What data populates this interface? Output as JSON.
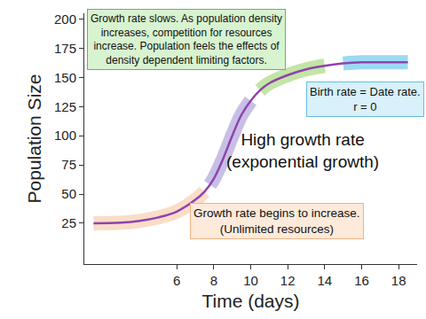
{
  "chart_data": {
    "type": "line",
    "xlabel": "Time (days)",
    "ylabel": "Population Size",
    "xlim": [
      1,
      19
    ],
    "xticks": [
      6,
      8,
      10,
      12,
      14,
      16,
      18
    ],
    "ylim": [
      -10,
      205
    ],
    "yticks": [
      25,
      50,
      75,
      100,
      125,
      150,
      175,
      200
    ],
    "grid": false,
    "series": [
      {
        "color": "#8e44ad",
        "line_style": "solid",
        "x": [
          1.5,
          3,
          4,
          5,
          6,
          7,
          7.5,
          8,
          8.5,
          9,
          9.5,
          10,
          10.5,
          11,
          12,
          13,
          14,
          15,
          16,
          17,
          18,
          18.5
        ],
        "values": [
          25,
          25.5,
          27,
          30,
          35,
          45,
          52,
          63,
          80,
          100,
          118,
          130,
          139,
          145,
          152,
          157,
          160,
          162,
          163,
          163,
          163,
          163
        ]
      },
      {
        "color": "#f7c6a3",
        "line_style": "highlight",
        "x": [
          1.5,
          3,
          4,
          5,
          6,
          7,
          7.5
        ],
        "values": [
          25,
          25.5,
          27,
          30,
          35,
          45,
          52
        ]
      },
      {
        "color": "#a394d6",
        "line_style": "highlight",
        "x": [
          7.8,
          8,
          8.5,
          9,
          9.5,
          10
        ],
        "values": [
          58,
          63,
          80,
          100,
          118,
          130
        ]
      },
      {
        "color": "#9bd46a",
        "line_style": "highlight",
        "x": [
          10.5,
          11,
          12,
          13,
          14
        ],
        "values": [
          139,
          145,
          152,
          157,
          160
        ]
      },
      {
        "color": "#5bc0eb",
        "line_style": "highlight",
        "x": [
          15,
          16,
          17,
          18,
          18.5
        ],
        "values": [
          162,
          163,
          163,
          163,
          163
        ]
      }
    ],
    "annotations": [
      {
        "text": [
          "Growth rate slows. As population density",
          "increases, competition for resources",
          "increase. Population feels the effects of",
          "density dependent limiting factors."
        ]
      },
      {
        "text": [
          "Birth rate = Date rate.",
          "r = 0"
        ]
      },
      {
        "text": [
          "High growth rate",
          "(exponential growth)"
        ]
      },
      {
        "text": [
          "Growth rate begins to increase.",
          "(Unlimited resources)"
        ]
      }
    ]
  }
}
